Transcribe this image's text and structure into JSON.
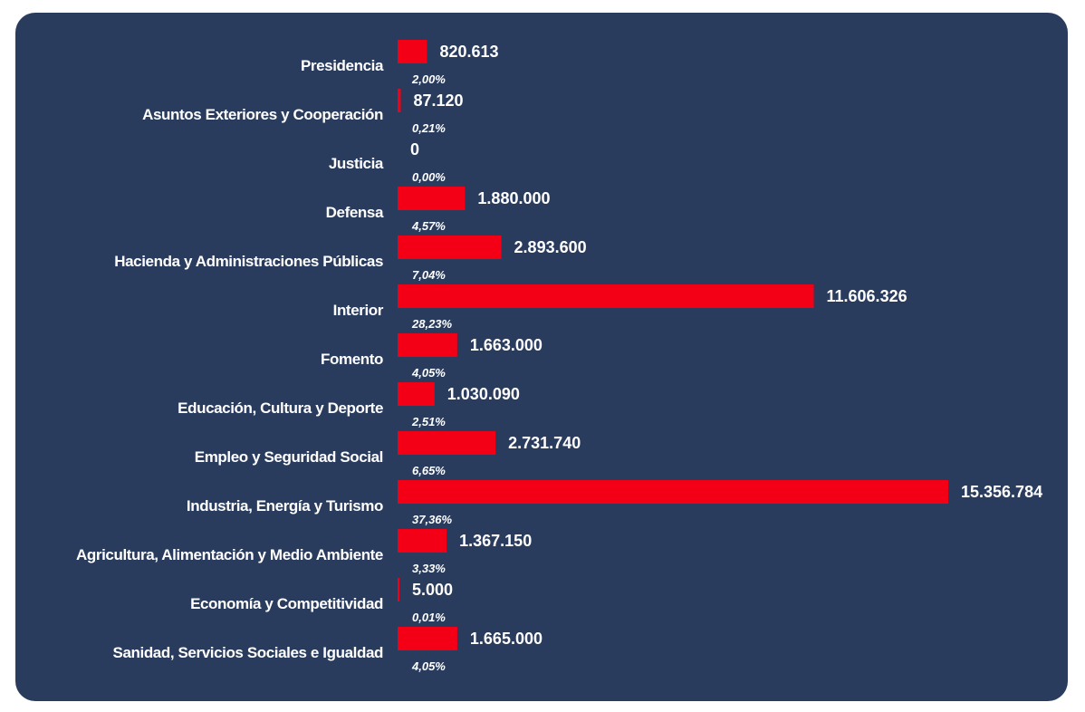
{
  "colors": {
    "background": "#2a3c5d",
    "bar": "#f30016",
    "text": "#ffffff"
  },
  "chart_data": {
    "type": "bar",
    "orientation": "horizontal",
    "title": "",
    "xlabel": "",
    "ylabel": "",
    "grid": false,
    "legend": "none",
    "xlim": [
      0,
      15356784
    ],
    "categories": [
      "Presidencia",
      "Asuntos Exteriores y Cooperación",
      "Justicia",
      "Defensa",
      "Hacienda y Administraciones Públicas",
      "Interior",
      "Fomento",
      "Educación, Cultura y Deporte",
      "Empleo y Seguridad Social",
      "Industria, Energía y Turismo",
      "Agricultura, Alimentación y Medio Ambiente",
      "Economía y Competitividad",
      "Sanidad, Servicios Sociales e Igualdad"
    ],
    "values": [
      820613,
      87120,
      0,
      1880000,
      2893600,
      11606326,
      1663000,
      1030090,
      2731740,
      15356784,
      1367150,
      5000,
      1665000
    ],
    "value_labels": [
      "820.613",
      "87.120",
      "0",
      "1.880.000",
      "2.893.600",
      "11.606.326",
      "1.663.000",
      "1.030.090",
      "2.731.740",
      "15.356.784",
      "1.367.150",
      "5.000",
      "1.665.000"
    ],
    "percent_labels": [
      "2,00%",
      "0,21%",
      "0,00%",
      "4,57%",
      "7,04%",
      "28,23%",
      "4,05%",
      "2,51%",
      "6,65%",
      "37,36%",
      "3,33%",
      "0,01%",
      "4,05%"
    ]
  }
}
